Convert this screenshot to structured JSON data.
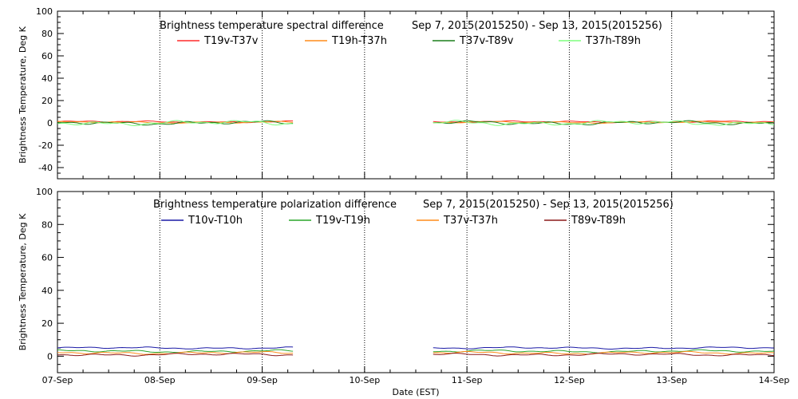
{
  "chart_data": [
    {
      "type": "line",
      "title_left": "Brightness temperature spectral difference",
      "title_right": "Sep  7, 2015(2015250) - Sep 13, 2015(2015256)",
      "ylabel": "Brightness Temperature, Deg K",
      "xlabel": "",
      "ylim": [
        -50,
        100
      ],
      "yticks": [
        -40,
        -20,
        0,
        20,
        40,
        60,
        80,
        100
      ],
      "ytick_labels": [
        "-40",
        "-20",
        "0",
        "20",
        "40",
        "60",
        "80",
        "100"
      ],
      "xlim": [
        0,
        7
      ],
      "xticks": [
        0,
        1,
        2,
        3,
        4,
        5,
        6,
        7
      ],
      "grid": "vertical-dotted",
      "gap": [
        2.3,
        3.67
      ],
      "series": [
        {
          "name": "T19v-T37v",
          "color": "#ff2a2a",
          "base": 1.0,
          "amp": 0.8
        },
        {
          "name": "T19h-T37h",
          "color": "#ff8c1a",
          "base": 0.5,
          "amp": 0.8
        },
        {
          "name": "T37v-T89v",
          "color": "#1b7f1b",
          "base": 0.0,
          "amp": 1.8
        },
        {
          "name": "T37h-T89h",
          "color": "#7fff7f",
          "base": 0.0,
          "amp": 2.2
        }
      ]
    },
    {
      "type": "line",
      "title_left": "Brightness temperature polarization difference",
      "title_right": "Sep  7, 2015(2015250) - Sep 13, 2015(2015256)",
      "ylabel": "Brightness Temperature, Deg K",
      "xlabel": "Date (EST)",
      "ylim": [
        -10,
        100
      ],
      "yticks": [
        0,
        20,
        40,
        60,
        80,
        100
      ],
      "ytick_labels": [
        "0",
        "20",
        "40",
        "60",
        "80",
        "100"
      ],
      "xlim": [
        0,
        7
      ],
      "xticks": [
        0,
        1,
        2,
        3,
        4,
        5,
        6,
        7
      ],
      "xtick_labels": [
        "07-Sep",
        "08-Sep",
        "09-Sep",
        "10-Sep",
        "11-Sep",
        "12-Sep",
        "13-Sep",
        "14-Sep"
      ],
      "grid": "vertical-dotted",
      "gap": [
        2.3,
        3.67
      ],
      "series": [
        {
          "name": "T10v-T10h",
          "color": "#1a1aa6",
          "base": 5.0,
          "amp": 0.6
        },
        {
          "name": "T19v-T19h",
          "color": "#2aa62a",
          "base": 3.0,
          "amp": 0.8
        },
        {
          "name": "T37v-T37h",
          "color": "#ff8c1a",
          "base": 2.0,
          "amp": 0.8
        },
        {
          "name": "T89v-T89h",
          "color": "#8b1a1a",
          "base": 1.0,
          "amp": 0.8
        }
      ]
    }
  ]
}
